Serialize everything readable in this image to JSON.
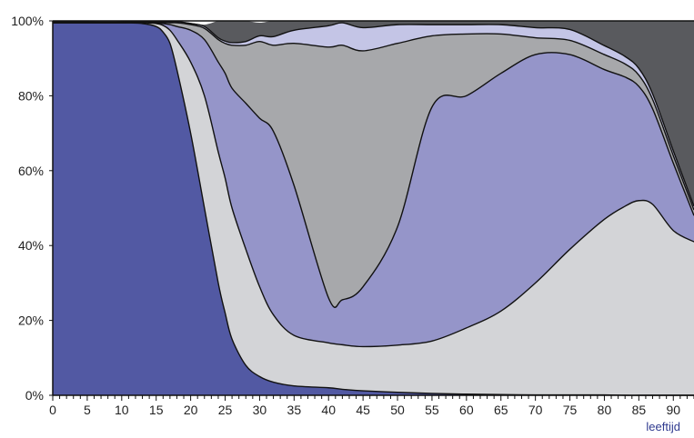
{
  "chart_data": {
    "type": "area",
    "stacked": true,
    "normalized": true,
    "xlabel": "leeftijd",
    "ylabel": "",
    "xlim": [
      0,
      93
    ],
    "ylim": [
      0,
      100
    ],
    "x_ticks": [
      0,
      5,
      10,
      15,
      20,
      25,
      30,
      35,
      40,
      45,
      50,
      55,
      60,
      65,
      70,
      75,
      80,
      85,
      90
    ],
    "y_ticks": [
      0,
      20,
      40,
      60,
      80,
      100
    ],
    "y_tick_labels": [
      "0%",
      "20%",
      "40%",
      "60%",
      "80%",
      "100%"
    ],
    "grid": false,
    "legend": "none",
    "colors": {
      "axis_title": "#2f3a8f",
      "outline": "#111111"
    },
    "x": [
      0,
      5,
      10,
      13,
      15,
      16,
      17,
      18,
      20,
      22,
      24,
      25,
      26,
      28,
      30,
      32,
      35,
      40,
      42,
      45,
      50,
      55,
      60,
      65,
      70,
      75,
      80,
      83,
      85,
      87,
      90,
      93
    ],
    "series": [
      {
        "color": "#5259a3",
        "values": [
          99.5,
          99.5,
          99.5,
          99.3,
          98.5,
          97,
          94,
          87,
          70,
          50,
          30,
          22,
          15,
          8,
          5,
          3.5,
          2.5,
          2,
          1.6,
          1.2,
          0.8,
          0.5,
          0.3,
          0.2,
          0.1,
          0.1,
          0.1,
          0,
          0,
          0,
          0,
          0
        ]
      },
      {
        "color": "#d3d4d7",
        "values": [
          0,
          0,
          0,
          0.2,
          0.8,
          1.8,
          3.5,
          8,
          19,
          30,
          35,
          36,
          35,
          31,
          24,
          18,
          13.5,
          12,
          11.9,
          11.8,
          12.6,
          14,
          17.7,
          22.3,
          29.9,
          38.9,
          46.9,
          50.5,
          52,
          51,
          44,
          41
        ]
      },
      {
        "color": "#9595c9",
        "values": [
          0,
          0,
          0,
          0.1,
          0.2,
          0.5,
          1.5,
          3.5,
          8.5,
          15,
          24,
          28,
          32,
          39,
          45,
          49,
          40,
          12,
          12,
          16,
          31.6,
          62.5,
          62,
          63.5,
          61,
          52,
          40,
          34.5,
          30.5,
          25.5,
          18,
          7
        ]
      },
      {
        "color": "#a7a8ab",
        "values": [
          0,
          0,
          0,
          0.1,
          0.2,
          0.3,
          0.5,
          1,
          1.5,
          3,
          6,
          8,
          11.5,
          15.5,
          20.5,
          23,
          38,
          67,
          68,
          63,
          49,
          19,
          16.5,
          10.5,
          4.5,
          3.8,
          4,
          3.5,
          3,
          2.5,
          2,
          1.5
        ]
      },
      {
        "color": "#c4c5e6",
        "values": [
          0.2,
          0.2,
          0.2,
          0.2,
          0.2,
          0.2,
          0.2,
          0.3,
          0.3,
          0.5,
          0.5,
          0.6,
          0.7,
          1,
          1.5,
          2.3,
          3.5,
          5.7,
          6,
          6.2,
          5,
          3,
          2.5,
          2.5,
          2.7,
          2.9,
          2.4,
          2,
          1.8,
          1.5,
          1.3,
          1
        ]
      },
      {
        "color": "#595a5e",
        "values": [
          0.3,
          0.3,
          0.3,
          0.3,
          0.3,
          0.3,
          0.3,
          0.2,
          0.2,
          0.5,
          4.5,
          5.4,
          5.8,
          5.5,
          3.5,
          4.2,
          2.5,
          1.3,
          0.5,
          1.8,
          1,
          1,
          1,
          1,
          1.8,
          2.3,
          6.6,
          9.5,
          12.7,
          19.5,
          34.7,
          49.5
        ]
      }
    ]
  }
}
